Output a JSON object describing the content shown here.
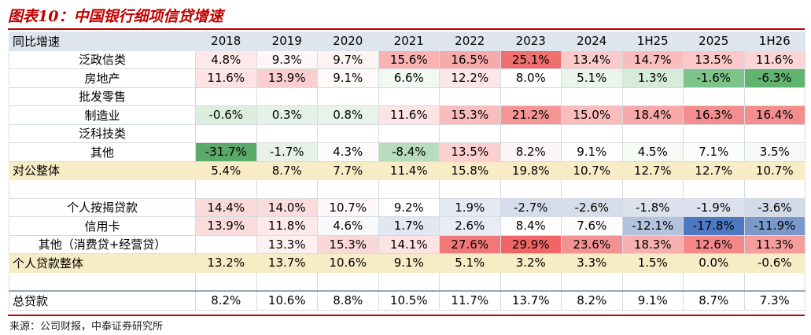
{
  "title": "图表10：中国银行细项信贷增速",
  "source": "来源：公司财报，中泰证券研究所",
  "chart_data": {
    "type": "table",
    "header_label": "同比增速",
    "columns": [
      "2018",
      "2019",
      "2020",
      "2021",
      "2022",
      "2023",
      "2024",
      "1H25",
      "2025",
      "1H26"
    ],
    "rows": [
      {
        "label": "泛政信类",
        "kind": "item",
        "values": [
          "4.8%",
          "9.3%",
          "9.7%",
          "15.6%",
          "16.5%",
          "25.1%",
          "13.4%",
          "14.7%",
          "13.5%",
          "11.6%"
        ]
      },
      {
        "label": "房地产",
        "kind": "item",
        "values": [
          "11.6%",
          "13.9%",
          "9.1%",
          "6.6%",
          "12.2%",
          "8.0%",
          "5.1%",
          "1.3%",
          "-1.6%",
          "-6.3%"
        ]
      },
      {
        "label": "批发零售",
        "kind": "item",
        "values": [
          "",
          "",
          "",
          "",
          "",
          "",
          "",
          "",
          "",
          ""
        ]
      },
      {
        "label": "制造业",
        "kind": "item",
        "values": [
          "-0.6%",
          "0.3%",
          "0.8%",
          "11.6%",
          "15.3%",
          "21.2%",
          "15.0%",
          "18.4%",
          "16.3%",
          "16.4%"
        ]
      },
      {
        "label": "泛科技类",
        "kind": "item",
        "values": [
          "",
          "",
          "",
          "",
          "",
          "",
          "",
          "",
          "",
          ""
        ]
      },
      {
        "label": "其他",
        "kind": "item",
        "values": [
          "-31.7%",
          "-1.7%",
          "4.3%",
          "-8.4%",
          "13.5%",
          "8.2%",
          "9.1%",
          "4.5%",
          "7.1%",
          "3.5%"
        ]
      },
      {
        "label": "对公整体",
        "kind": "sum",
        "values": [
          "5.4%",
          "8.7%",
          "7.7%",
          "11.4%",
          "15.8%",
          "19.8%",
          "10.7%",
          "12.7%",
          "12.7%",
          "10.7%"
        ]
      },
      {
        "label": "",
        "kind": "blank",
        "values": [
          "",
          "",
          "",
          "",
          "",
          "",
          "",
          "",
          "",
          ""
        ]
      },
      {
        "label": "个人按揭贷款",
        "kind": "item",
        "values": [
          "14.4%",
          "14.0%",
          "10.7%",
          "9.2%",
          "1.9%",
          "-2.7%",
          "-2.6%",
          "-1.8%",
          "-1.9%",
          "-3.6%"
        ]
      },
      {
        "label": "信用卡",
        "kind": "item",
        "values": [
          "13.9%",
          "11.8%",
          "4.6%",
          "1.7%",
          "2.6%",
          "8.4%",
          "7.6%",
          "-12.1%",
          "-17.8%",
          "-11.9%"
        ]
      },
      {
        "label": "其他（消费贷+经营贷）",
        "kind": "item",
        "values": [
          "",
          "13.3%",
          "15.3%",
          "14.1%",
          "27.6%",
          "29.9%",
          "23.6%",
          "18.3%",
          "12.6%",
          "11.3%"
        ]
      },
      {
        "label": "个人贷款整体",
        "kind": "sum",
        "values": [
          "13.2%",
          "13.7%",
          "10.6%",
          "9.1%",
          "5.1%",
          "3.2%",
          "3.3%",
          "1.5%",
          "0.0%",
          "-0.6%"
        ]
      },
      {
        "label": "",
        "kind": "blank",
        "values": [
          "",
          "",
          "",
          "",
          "",
          "",
          "",
          "",
          "",
          ""
        ]
      },
      {
        "label": "总贷款",
        "kind": "total",
        "values": [
          "8.2%",
          "10.6%",
          "8.8%",
          "10.5%",
          "11.7%",
          "13.7%",
          "8.2%",
          "9.1%",
          "8.7%",
          "7.3%"
        ]
      }
    ],
    "cell_fills": [
      [
        "#fde9e9",
        "#fdf6f6",
        "#fdf3f3",
        "#f9b3b3",
        "#f7aaaa",
        "#f07070",
        "#fbcaca",
        "#fabdbd",
        "#fbc7c7",
        "#fcd5d5"
      ],
      [
        "#fde3e3",
        "#fbcfcf",
        "#fffafa",
        "#f2f8f2",
        "#fde6e6",
        "#ffffff",
        "#e9f4ea",
        "#d6ebd8",
        "#7dc48a",
        "#60b46f"
      ],
      [
        "",
        "",
        "",
        "",
        "",
        "",
        "",
        "",
        "",
        ""
      ],
      [
        "#dcefdf",
        "#e3f2e6",
        "#e8f4ea",
        "#fde4e4",
        "#fabcbc",
        "#f59696",
        "#fbbcbc",
        "#f7a8a8",
        "#f48e8e",
        "#f48e8e"
      ],
      [
        "",
        "",
        "",
        "",
        "",
        "",
        "",
        "",
        "",
        ""
      ],
      [
        "#5aa968",
        "#e6f2e8",
        "#fbfcfb",
        "#b7dcbe",
        "#fcd0d0",
        "#fdf5f5",
        "#fefefe",
        "#f5faf5",
        "#fbfdfb",
        "#f6faf6"
      ],
      [
        "",
        "",
        "",
        "",
        "",
        "",
        "",
        "",
        "",
        ""
      ],
      [
        "",
        "",
        "",
        "",
        "",
        "",
        "",
        "",
        "",
        ""
      ],
      [
        "#fbdada",
        "#fbdcdc",
        "#fff8f8",
        "#ffffff",
        "#e4e9f2",
        "#d5ddea",
        "#d6ddea",
        "#dbe2ed",
        "#dbe2ed",
        "#d2dae8"
      ],
      [
        "#fbdcdc",
        "#fde9e9",
        "#f8f9fb",
        "#e2e8f1",
        "#e8ecf3",
        "#fefefe",
        "#fcfcfc",
        "#b3c3dd",
        "#4d78c2",
        "#7b98cb"
      ],
      [
        "#ffffff",
        "#fdf0f0",
        "#fbd8d8",
        "#fde3e3",
        "#f17878",
        "#f06666",
        "#f39292",
        "#f7b0b0",
        "#f48787",
        "#f59c9c"
      ],
      [
        "",
        "",
        "",
        "",
        "",
        "",
        "",
        "",
        "",
        ""
      ],
      [
        "",
        "",
        "",
        "",
        "",
        "",
        "",
        "",
        "",
        ""
      ],
      [
        "",
        "",
        "",
        "",
        "",
        "",
        "",
        "",
        "",
        ""
      ]
    ]
  }
}
